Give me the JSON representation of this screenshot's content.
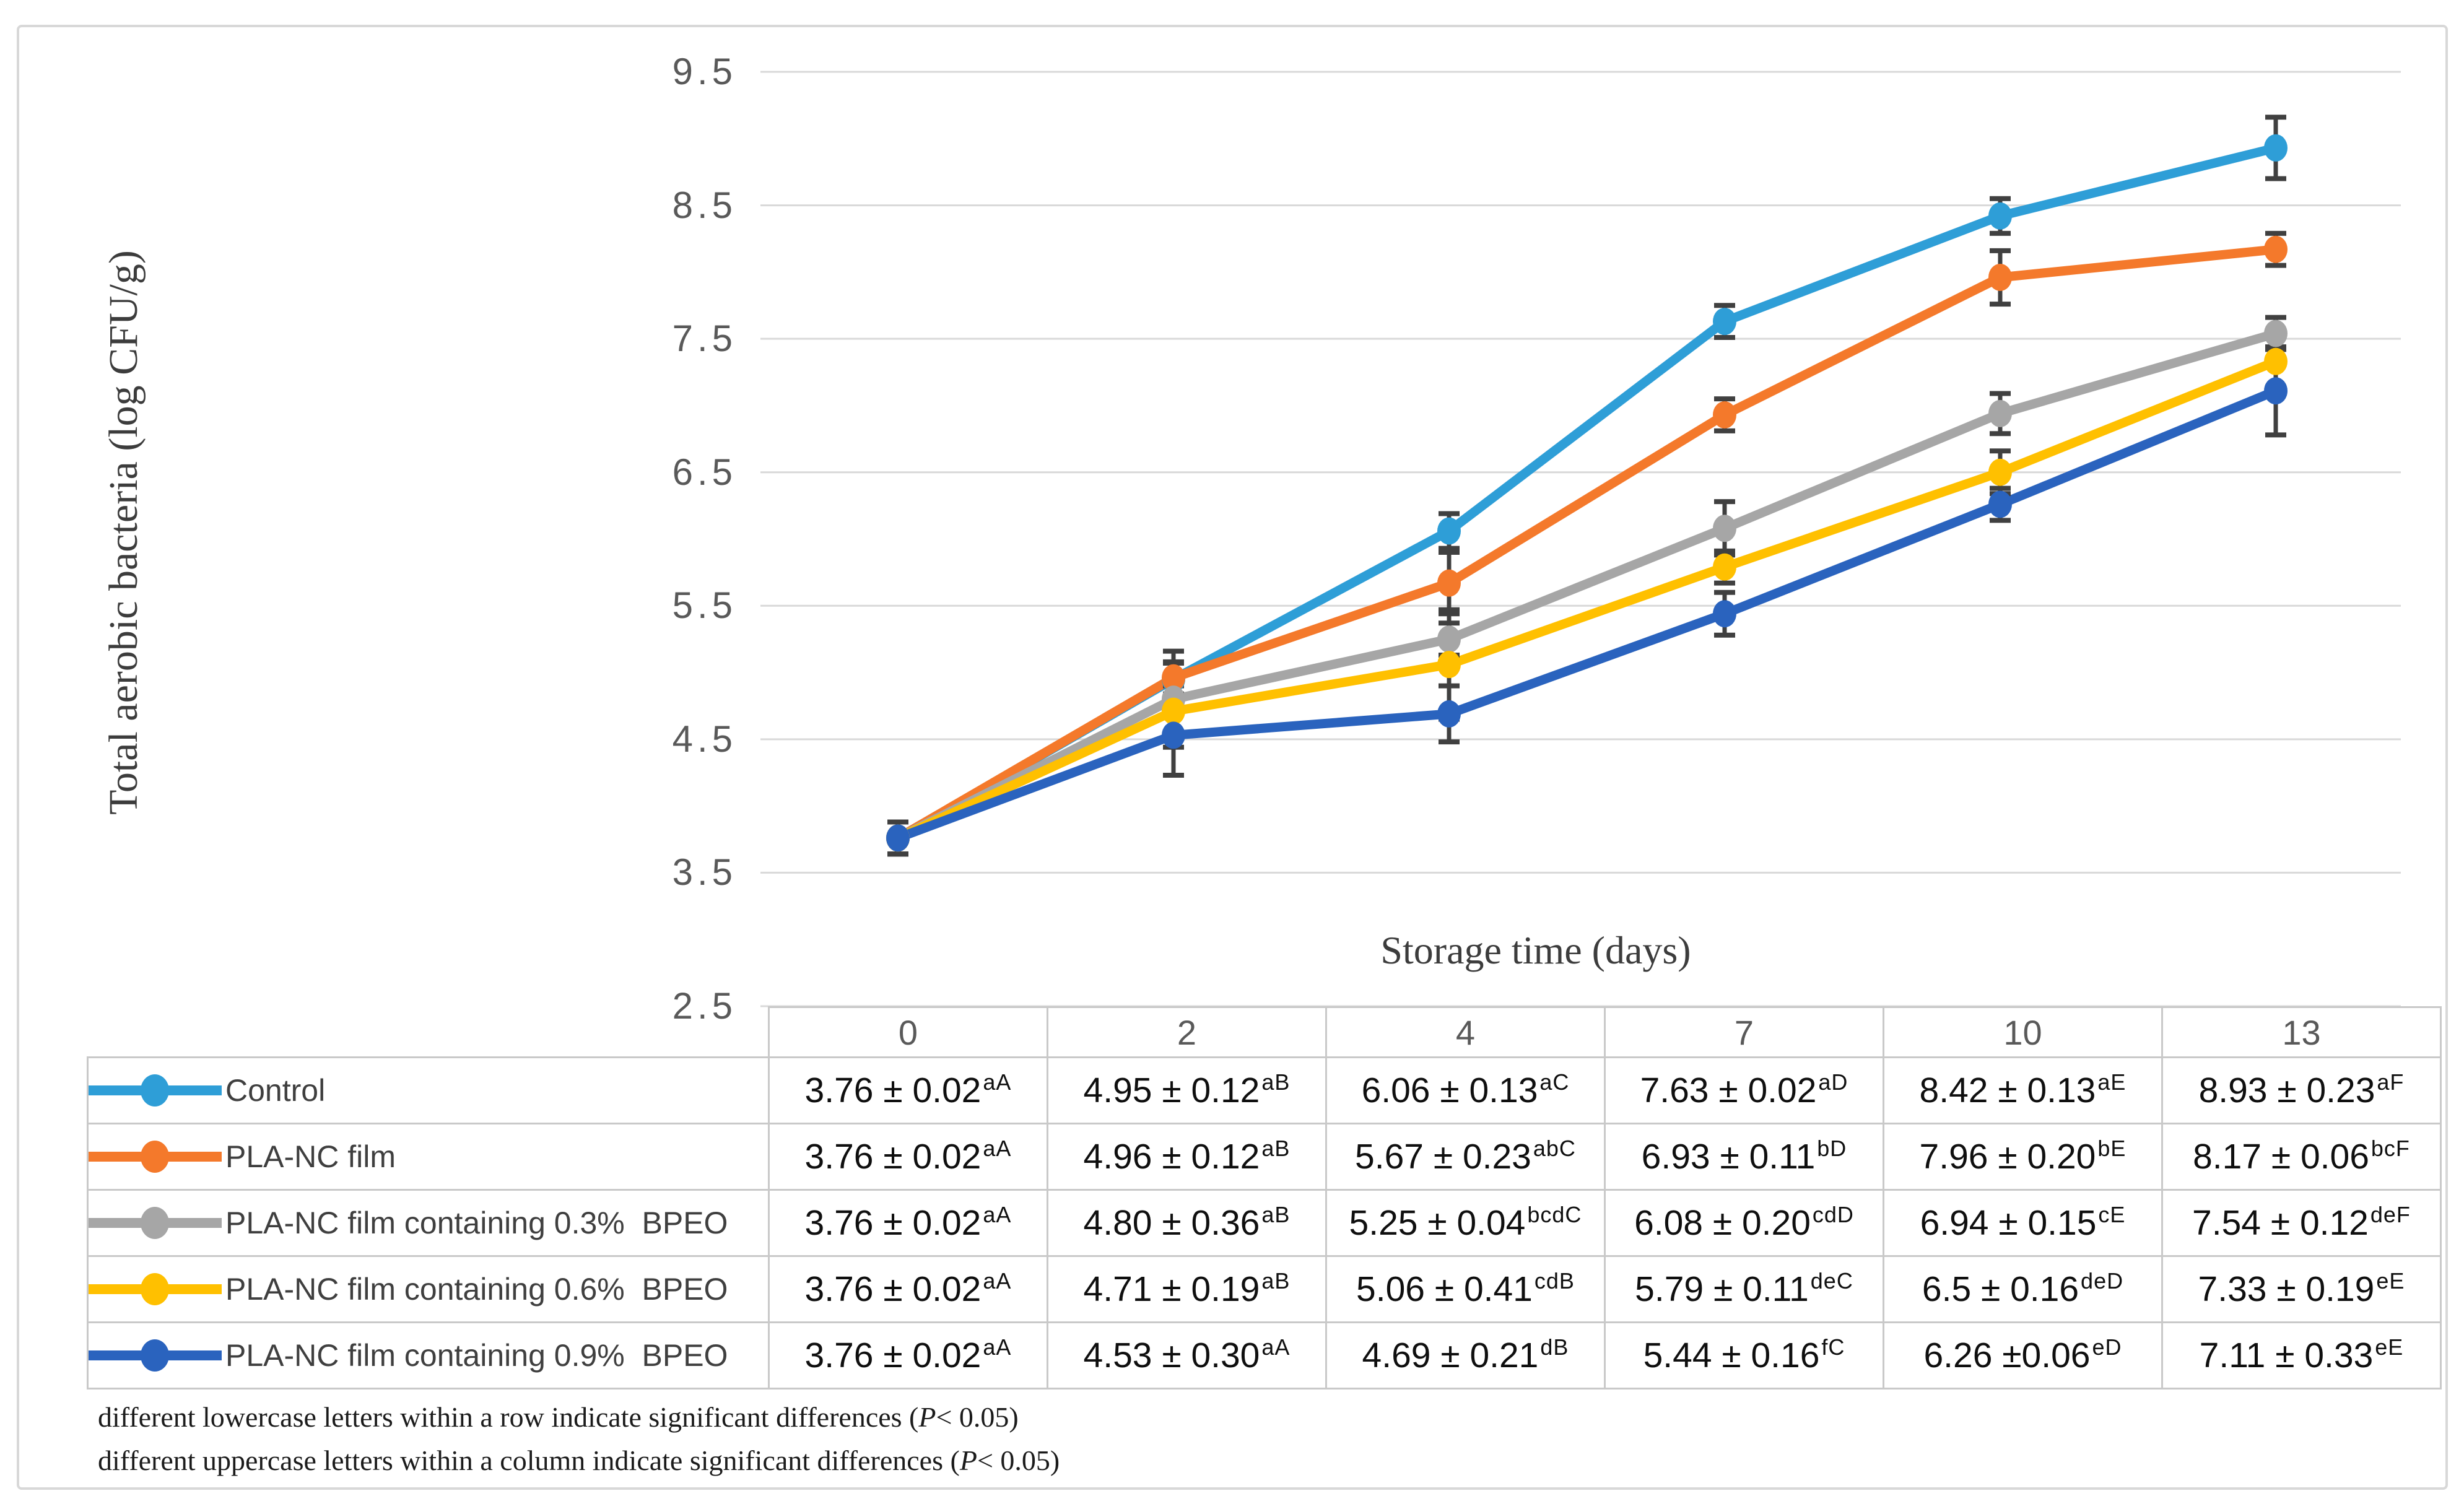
{
  "axes": {
    "y_title": "Total aerobic bacteria (log CFU/g)",
    "x_title": "Storage time (days)",
    "y_ticks": [
      "9.5",
      "8.5",
      "7.5",
      "6.5",
      "5.5",
      "4.5",
      "3.5",
      "2.5"
    ]
  },
  "chart_data": {
    "type": "line",
    "title": "",
    "xlabel": "Storage time (days)",
    "ylabel": "Total aerobic bacteria (log CFU/g)",
    "categories": [
      "0",
      "2",
      "4",
      "7",
      "10",
      "13"
    ],
    "ylim": [
      2.5,
      9.5
    ],
    "ytick_step": 1.0,
    "grid": "horizontal-only",
    "markers": "circle",
    "error_bars": true,
    "legend_position": "left-column-of-table",
    "series": [
      {
        "name": "Control",
        "color": "#2E9ED7",
        "values": [
          3.76,
          4.95,
          6.06,
          7.63,
          8.42,
          8.93
        ],
        "errors": [
          0.02,
          0.12,
          0.13,
          0.02,
          0.13,
          0.23
        ]
      },
      {
        "name": "PLA-NC film",
        "color": "#F4792B",
        "values": [
          3.76,
          4.96,
          5.67,
          6.93,
          7.96,
          8.17
        ],
        "errors": [
          0.02,
          0.12,
          0.23,
          0.11,
          0.2,
          0.06
        ]
      },
      {
        "name": "PLA-NC film containing 0.3%  BPEO",
        "color": "#A6A6A6",
        "values": [
          3.76,
          4.8,
          5.25,
          6.08,
          6.94,
          7.54
        ],
        "errors": [
          0.02,
          0.36,
          0.04,
          0.2,
          0.15,
          0.12
        ]
      },
      {
        "name": "PLA-NC film containing 0.6%  BPEO",
        "color": "#FFC000",
        "values": [
          3.76,
          4.71,
          5.06,
          5.79,
          6.5,
          7.33
        ],
        "errors": [
          0.02,
          0.19,
          0.41,
          0.11,
          0.16,
          0.19
        ]
      },
      {
        "name": "PLA-NC film containing 0.9%  BPEO",
        "color": "#2A63BE",
        "values": [
          3.76,
          4.53,
          4.69,
          5.44,
          6.26,
          7.11
        ],
        "errors": [
          0.02,
          0.3,
          0.21,
          0.16,
          0.06,
          0.33
        ]
      }
    ]
  },
  "table": {
    "col_headers": [
      "0",
      "2",
      "4",
      "7",
      "10",
      "13"
    ],
    "rows": [
      {
        "label": "Control",
        "color": "#2E9ED7",
        "cells": [
          {
            "v": "3.76 ± 0.02",
            "sup": "aA"
          },
          {
            "v": "4.95 ± 0.12",
            "sup": "aB"
          },
          {
            "v": "6.06 ± 0.13",
            "sup": "aC"
          },
          {
            "v": "7.63 ± 0.02",
            "sup": "aD"
          },
          {
            "v": "8.42 ± 0.13",
            "sup": "aE"
          },
          {
            "v": "8.93 ± 0.23",
            "sup": "aF"
          }
        ]
      },
      {
        "label": "PLA-NC film",
        "color": "#F4792B",
        "cells": [
          {
            "v": "3.76 ± 0.02",
            "sup": "aA"
          },
          {
            "v": "4.96 ± 0.12",
            "sup": "aB"
          },
          {
            "v": "5.67 ± 0.23",
            "sup": "abC"
          },
          {
            "v": "6.93 ± 0.11",
            "sup": "bD"
          },
          {
            "v": "7.96 ± 0.20",
            "sup": "bE"
          },
          {
            "v": "8.17 ± 0.06",
            "sup": "bcF"
          }
        ]
      },
      {
        "label": "PLA-NC film containing 0.3%  BPEO",
        "color": "#A6A6A6",
        "cells": [
          {
            "v": "3.76 ± 0.02",
            "sup": "aA"
          },
          {
            "v": "4.80 ± 0.36",
            "sup": "aB"
          },
          {
            "v": "5.25 ± 0.04",
            "sup": "bcdC"
          },
          {
            "v": "6.08 ± 0.20",
            "sup": "cdD"
          },
          {
            "v": "6.94 ± 0.15",
            "sup": "cE"
          },
          {
            "v": "7.54 ± 0.12",
            "sup": "deF"
          }
        ]
      },
      {
        "label": "PLA-NC film containing 0.6%  BPEO",
        "color": "#FFC000",
        "cells": [
          {
            "v": "3.76 ± 0.02",
            "sup": "aA"
          },
          {
            "v": "4.71 ± 0.19",
            "sup": "aB"
          },
          {
            "v": "5.06 ± 0.41",
            "sup": "cdB"
          },
          {
            "v": "5.79 ± 0.11",
            "sup": "deC"
          },
          {
            "v": "6.5 ± 0.16",
            "sup": "deD"
          },
          {
            "v": "7.33 ± 0.19",
            "sup": "eE"
          }
        ]
      },
      {
        "label": "PLA-NC film containing 0.9%  BPEO",
        "color": "#2A63BE",
        "cells": [
          {
            "v": "3.76 ± 0.02",
            "sup": "aA"
          },
          {
            "v": "4.53 ± 0.30",
            "sup": "aA"
          },
          {
            "v": "4.69 ± 0.21",
            "sup": "dB"
          },
          {
            "v": "5.44 ± 0.16",
            "sup": "fC"
          },
          {
            "v": "6.26 ±0.06",
            "sup": "eD"
          },
          {
            "v": "7.11 ± 0.33",
            "sup": "eE"
          }
        ]
      }
    ]
  },
  "footnotes": [
    {
      "pre": "different lowercase letters within a  row indicate significant differences (",
      "p": "P",
      "post": "< 0.05)"
    },
    {
      "pre": "different uppercase letters within a column indicate significant differences (",
      "p": "P",
      "post": "< 0.05)"
    }
  ],
  "colors": {
    "gridline": "#D9D9D9",
    "error_bar": "#404040",
    "tick_text": "#595959",
    "table_border": "#C9C9C9",
    "figure_border": "#D8D8D8"
  }
}
